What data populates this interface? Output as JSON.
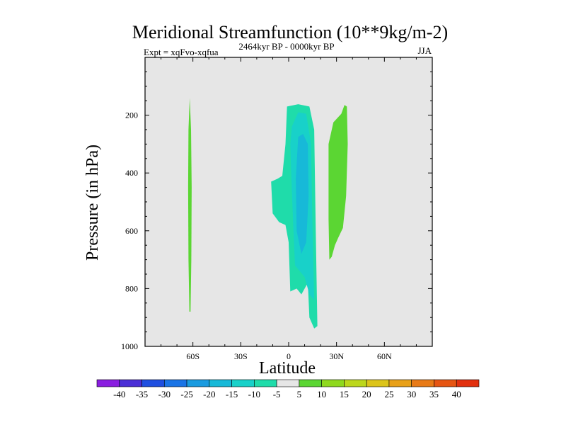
{
  "chart_data": {
    "type": "contour",
    "title": "Meridional Streamfunction (10**9kg/m-2)",
    "subtitle_left": "Expt = xqFvo-xqfua",
    "subtitle_center": "2464kyr BP - 0000kyr BP",
    "subtitle_right": "JJA",
    "xlabel": "Latitude",
    "ylabel": "Pressure (in hPa)",
    "xlim": [
      -90,
      90
    ],
    "ylim": [
      1000,
      0
    ],
    "x_ticks": [
      {
        "value": -60,
        "label": "60S"
      },
      {
        "value": -30,
        "label": "30S"
      },
      {
        "value": 0,
        "label": "0"
      },
      {
        "value": 30,
        "label": "30N"
      },
      {
        "value": 60,
        "label": "60N"
      }
    ],
    "y_ticks": [
      {
        "value": 200,
        "label": "200"
      },
      {
        "value": 400,
        "label": "400"
      },
      {
        "value": 600,
        "label": "600"
      },
      {
        "value": 800,
        "label": "800"
      },
      {
        "value": 1000,
        "label": "1000"
      }
    ],
    "background_color": "#e6e6e6",
    "colorbar": {
      "labels": [
        "-40",
        "-35",
        "-30",
        "-25",
        "-20",
        "-15",
        "-10",
        "-5",
        "5",
        "10",
        "15",
        "20",
        "25",
        "30",
        "35",
        "40"
      ],
      "colors": [
        "#8a1ee0",
        "#4b2fd6",
        "#1f4fe0",
        "#1a74e6",
        "#1a9be0",
        "#17b9d8",
        "#18d1c9",
        "#1fdcaa",
        "#e6e6e6",
        "#5bd633",
        "#8fd91e",
        "#bcd71c",
        "#dcc41a",
        "#e8a018",
        "#e87a16",
        "#e65512",
        "#e2300e"
      ]
    },
    "regions": [
      {
        "name": "positive-lobe-60s",
        "value": "5 to 10",
        "color": "#5bd633",
        "polygon": [
          [
            -62,
            140
          ],
          [
            -61.2,
            250
          ],
          [
            -60.8,
            450
          ],
          [
            -61,
            700
          ],
          [
            -61.5,
            880
          ],
          [
            -62.2,
            880
          ],
          [
            -62.8,
            700
          ],
          [
            -63,
            450
          ],
          [
            -62.8,
            250
          ]
        ]
      },
      {
        "name": "negative-cell-outer",
        "value": "-5 to -10",
        "color": "#1fdcaa",
        "polygon": [
          [
            -1,
            170
          ],
          [
            6,
            162
          ],
          [
            13,
            170
          ],
          [
            16,
            250
          ],
          [
            17,
            600
          ],
          [
            18,
            930
          ],
          [
            16,
            938
          ],
          [
            13,
            900
          ],
          [
            12,
            780
          ],
          [
            8,
            820
          ],
          [
            5,
            800
          ],
          [
            1,
            810
          ],
          [
            0,
            640
          ],
          [
            -2,
            580
          ],
          [
            -6,
            570
          ],
          [
            -10,
            540
          ],
          [
            -11,
            430
          ],
          [
            -7,
            420
          ],
          [
            -4,
            410
          ],
          [
            -2,
            300
          ]
        ]
      },
      {
        "name": "negative-cell-mid",
        "value": "-10 to -15",
        "color": "#18d1c9",
        "polygon": [
          [
            2,
            240
          ],
          [
            6,
            190
          ],
          [
            11,
            195
          ],
          [
            14,
            300
          ],
          [
            15,
            600
          ],
          [
            16,
            840
          ],
          [
            13,
            820
          ],
          [
            10,
            760
          ],
          [
            7,
            740
          ],
          [
            4,
            720
          ],
          [
            3,
            600
          ],
          [
            2,
            460
          ],
          [
            1,
            300
          ]
        ]
      },
      {
        "name": "negative-cell-core",
        "value": "-15 to -20",
        "color": "#17b9d8",
        "polygon": [
          [
            4.5,
            420
          ],
          [
            6,
            275
          ],
          [
            9,
            265
          ],
          [
            12,
            300
          ],
          [
            12.5,
            480
          ],
          [
            11,
            640
          ],
          [
            8,
            680
          ],
          [
            5,
            600
          ]
        ]
      },
      {
        "name": "positive-lobe-30n",
        "value": "5 to 10",
        "color": "#5bd633",
        "polygon": [
          [
            25,
            300
          ],
          [
            28,
            225
          ],
          [
            33,
            195
          ],
          [
            35,
            165
          ],
          [
            36.5,
            170
          ],
          [
            37,
            300
          ],
          [
            36,
            480
          ],
          [
            34,
            590
          ],
          [
            31,
            625
          ],
          [
            29,
            650
          ],
          [
            27,
            690
          ],
          [
            25.5,
            700
          ],
          [
            25,
            560
          ]
        ]
      }
    ]
  }
}
